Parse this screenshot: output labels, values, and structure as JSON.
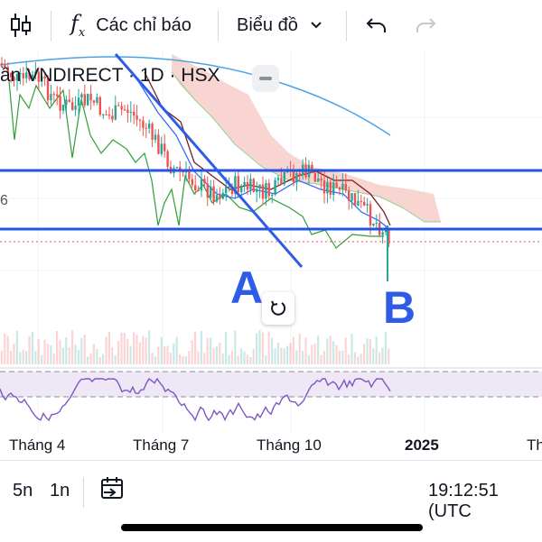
{
  "toolbar": {
    "indicators_label": "Các chỉ báo",
    "chart_label": "Biểu đồ"
  },
  "chart": {
    "title": "ần VNDIRECT · 1D · HSX",
    "left_partial_label": "6",
    "annotation_a": "A",
    "annotation_b": "B",
    "time_axis": [
      "Tháng 4",
      "Tháng 7",
      "Tháng 10",
      "2025",
      "Th"
    ],
    "colors": {
      "up_candle": "#26a69a",
      "down_candle": "#ef5350",
      "horizontal_lines": "#2554e0",
      "trendline": "#2e5ce6",
      "cloud": "#f6c7c2",
      "rsi_line": "#7e57c2",
      "rsi_band": "#ede7f6"
    }
  },
  "bottom_bar": {
    "range_5d": "5n",
    "range_1d": "1n",
    "time": "19:12:51 (UTC"
  }
}
